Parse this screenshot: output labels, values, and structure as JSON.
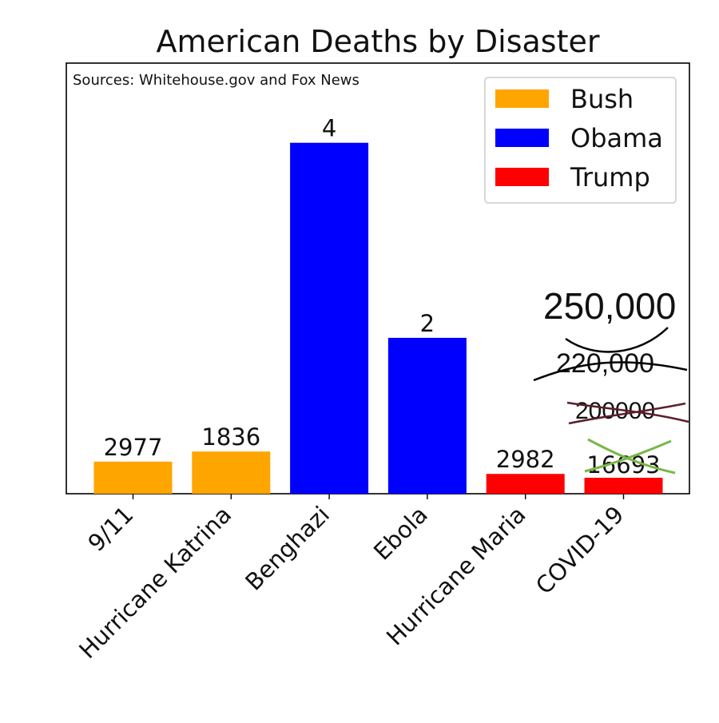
{
  "chart_data": {
    "type": "bar",
    "title": "American Deaths by Disaster",
    "source_note": "Sources: Whitehouse.gov and Fox News",
    "categories": [
      "9/11",
      "Hurricane Katrina",
      "Benghazi",
      "Ebola",
      "Hurricane Maria",
      "COVID-19"
    ],
    "bar_heights": [
      0.0745,
      0.098,
      0.815,
      0.362,
      0.046,
      0.037
    ],
    "value_labels": [
      "2977",
      "1836",
      "4",
      "2",
      "2982",
      "16693"
    ],
    "bar_groups": [
      "Bush",
      "Bush",
      "Obama",
      "Obama",
      "Trump",
      "Trump"
    ],
    "legend": [
      {
        "name": "Bush",
        "color": "#FFA500"
      },
      {
        "name": "Obama",
        "color": "#0000FF"
      },
      {
        "name": "Trump",
        "color": "#FF0000"
      }
    ],
    "legend_position": "top-right",
    "grid": false,
    "annotations": {
      "crossed_out": [
        {
          "text": "220,000",
          "strike_color": "#000000"
        },
        {
          "text": "200000",
          "strike_color": "#5a1f2a"
        }
      ],
      "current": "250,000"
    }
  }
}
